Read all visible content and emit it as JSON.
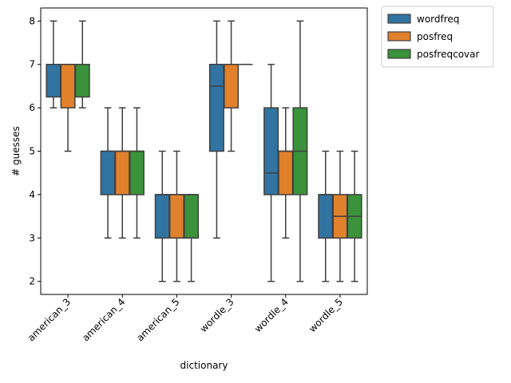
{
  "chart_data": {
    "type": "box",
    "xlabel": "dictionary",
    "ylabel": "# guesses",
    "ylim": [
      1.7,
      8.3
    ],
    "yticks": [
      2,
      3,
      4,
      5,
      6,
      7,
      8
    ],
    "categories": [
      "american_3",
      "american_4",
      "american_5",
      "wordle_3",
      "wordle_4",
      "wordle_5"
    ],
    "legend_position": "outside-top-right",
    "series": [
      {
        "name": "wordfreq",
        "color": "#3274a1",
        "boxes": [
          {
            "whislo": 6,
            "q1": 6.25,
            "med": 7,
            "q3": 7,
            "whishi": 8
          },
          {
            "whislo": 3,
            "q1": 4,
            "med": 5,
            "q3": 5,
            "whishi": 6
          },
          {
            "whislo": 2,
            "q1": 3,
            "med": 4,
            "q3": 4,
            "whishi": 5
          },
          {
            "whislo": 3,
            "q1": 5,
            "med": 6.5,
            "q3": 7,
            "whishi": 8
          },
          {
            "whislo": 2,
            "q1": 4,
            "med": 4.5,
            "q3": 6,
            "whishi": 7
          },
          {
            "whislo": 2,
            "q1": 3,
            "med": 4,
            "q3": 4,
            "whishi": 5
          }
        ]
      },
      {
        "name": "posfreq",
        "color": "#e1812c",
        "boxes": [
          {
            "whislo": 5,
            "q1": 6,
            "med": 7,
            "q3": 7,
            "whishi": 7
          },
          {
            "whislo": 3,
            "q1": 4,
            "med": 5,
            "q3": 5,
            "whishi": 6
          },
          {
            "whislo": 2,
            "q1": 3,
            "med": 4,
            "q3": 4,
            "whishi": 5
          },
          {
            "whislo": 5,
            "q1": 6,
            "med": 7,
            "q3": 7,
            "whishi": 8
          },
          {
            "whislo": 3,
            "q1": 4,
            "med": 5,
            "q3": 5,
            "whishi": 6
          },
          {
            "whislo": 2,
            "q1": 3,
            "med": 3.5,
            "q3": 4,
            "whishi": 5
          }
        ]
      },
      {
        "name": "posfreqcovar",
        "color": "#3a923a",
        "boxes": [
          {
            "whislo": 6,
            "q1": 6.25,
            "med": 7,
            "q3": 7,
            "whishi": 8
          },
          {
            "whislo": 3,
            "q1": 4,
            "med": 5,
            "q3": 5,
            "whishi": 6
          },
          {
            "whislo": 2,
            "q1": 3,
            "med": 4,
            "q3": 4,
            "whishi": 4
          },
          {
            "whislo": 7,
            "q1": 7,
            "med": 7,
            "q3": 7,
            "whishi": 7
          },
          {
            "whislo": 2,
            "q1": 4,
            "med": 5,
            "q3": 6,
            "whishi": 8
          },
          {
            "whislo": 2,
            "q1": 3,
            "med": 3.5,
            "q3": 4,
            "whishi": 5
          }
        ]
      }
    ]
  }
}
